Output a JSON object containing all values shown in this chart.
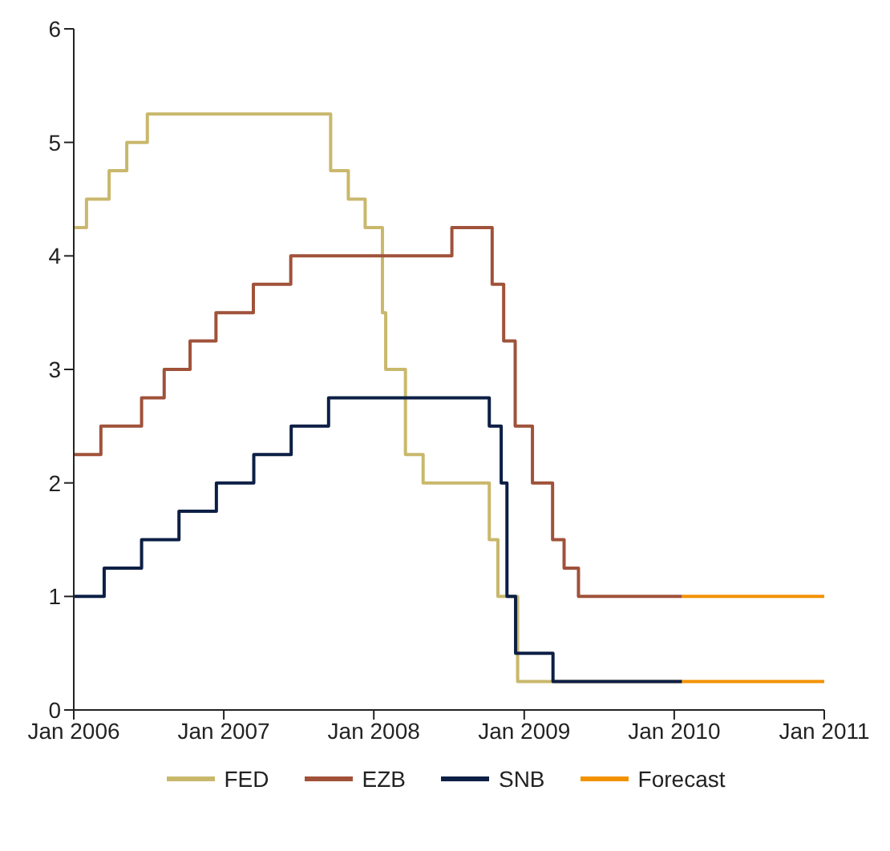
{
  "chart_data": {
    "type": "step",
    "xlim": [
      "2006-01",
      "2011-01"
    ],
    "xticks": [
      {
        "value": "2006-01",
        "label": "Jan 2006"
      },
      {
        "value": "2007-01",
        "label": "Jan 2007"
      },
      {
        "value": "2008-01",
        "label": "Jan 2008"
      },
      {
        "value": "2009-01",
        "label": "Jan 2009"
      },
      {
        "value": "2010-01",
        "label": "Jan 2010"
      },
      {
        "value": "2011-01",
        "label": "Jan 2011"
      }
    ],
    "ylim": [
      0,
      6
    ],
    "yticks": [
      0,
      1,
      2,
      3,
      4,
      5,
      6
    ],
    "legend": "bottom",
    "marker": "none",
    "line_style": "solid",
    "series": [
      {
        "name": "FED",
        "color": "#c9b86c",
        "x": [
          "2006-01",
          "2006-02",
          "2006-03-28",
          "2006-05-10",
          "2006-06-29",
          "2007-09-18",
          "2007-10-31",
          "2007-12-11",
          "2008-01-22",
          "2008-01-30",
          "2008-03-18",
          "2008-04-30",
          "2008-10-08",
          "2008-10-29",
          "2008-12-16",
          "2010-01-20"
        ],
        "values": [
          4.25,
          4.5,
          4.75,
          5.0,
          5.25,
          4.75,
          4.5,
          4.25,
          3.5,
          3.0,
          2.25,
          2.0,
          1.5,
          1.0,
          0.25,
          0.25
        ]
      },
      {
        "name": "EZB",
        "color": "#a0523a",
        "x": [
          "2006-01",
          "2006-03-08",
          "2006-06-15",
          "2006-08-09",
          "2006-10-11",
          "2006-12-13",
          "2007-03-14",
          "2007-06-13",
          "2008-07-09",
          "2008-10-15",
          "2008-11-12",
          "2008-12-10",
          "2009-01-21",
          "2009-03-11",
          "2009-04-08",
          "2009-05-13",
          "2010-01-20"
        ],
        "values": [
          2.25,
          2.5,
          2.75,
          3.0,
          3.25,
          3.5,
          3.75,
          4.0,
          4.25,
          3.75,
          3.25,
          2.5,
          2.0,
          1.5,
          1.25,
          1.0,
          1.0
        ]
      },
      {
        "name": "SNB",
        "color": "#0d1f45",
        "x": [
          "2006-01",
          "2006-03-16",
          "2006-06-15",
          "2006-09-14",
          "2006-12-14",
          "2007-03-15",
          "2007-06-14",
          "2007-09-13",
          "2008-10-08",
          "2008-11-06",
          "2008-11-20",
          "2008-12-11",
          "2009-03-12",
          "2010-01-20"
        ],
        "values": [
          1.0,
          1.25,
          1.5,
          1.75,
          2.0,
          2.25,
          2.5,
          2.75,
          2.5,
          2.0,
          1.0,
          0.5,
          0.25,
          0.25
        ]
      },
      {
        "name": "Forecast",
        "color": "#f39200",
        "x": [
          "2010-01-20",
          "2011-01"
        ],
        "values": [
          1.0,
          1.0
        ]
      },
      {
        "color": "#f39200",
        "x": [
          "2010-01-20",
          "2011-01"
        ],
        "values": [
          0.25,
          0.25
        ]
      }
    ]
  }
}
